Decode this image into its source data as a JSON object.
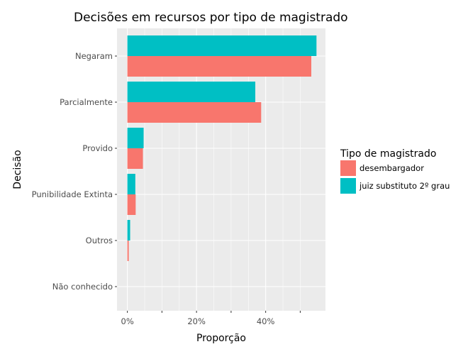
{
  "chart_data": {
    "type": "bar",
    "orientation": "horizontal",
    "title": "Decisões em recursos por tipo de magistrado",
    "xlabel": "Proporção",
    "ylabel": "Decisão",
    "xlim": [
      -0.03,
      0.573
    ],
    "x_ticks": [
      0,
      0.1,
      0.2,
      0.3,
      0.4,
      0.5
    ],
    "x_tick_labels": [
      "0%",
      "",
      "20%",
      "",
      "40%",
      ""
    ],
    "categories": [
      "Negaram",
      "Parcialmente",
      "Provido",
      "Punibilidade Extinta",
      "Outros",
      "Não conhecido"
    ],
    "series": [
      {
        "name": "juiz substituto 2º grau",
        "color": "#00BFC4",
        "values": [
          0.547,
          0.37,
          0.047,
          0.023,
          0.008,
          0.0
        ]
      },
      {
        "name": "desembargador",
        "color": "#F8766D",
        "values": [
          0.532,
          0.387,
          0.045,
          0.024,
          0.004,
          0.0
        ]
      }
    ],
    "legend": {
      "title": "Tipo de magistrado",
      "position": "right",
      "entries": [
        "desembargador",
        "juiz substituto 2º grau"
      ]
    },
    "grid": true,
    "panel_background": "#EBEBEB",
    "grid_color": "#FFFFFF"
  }
}
